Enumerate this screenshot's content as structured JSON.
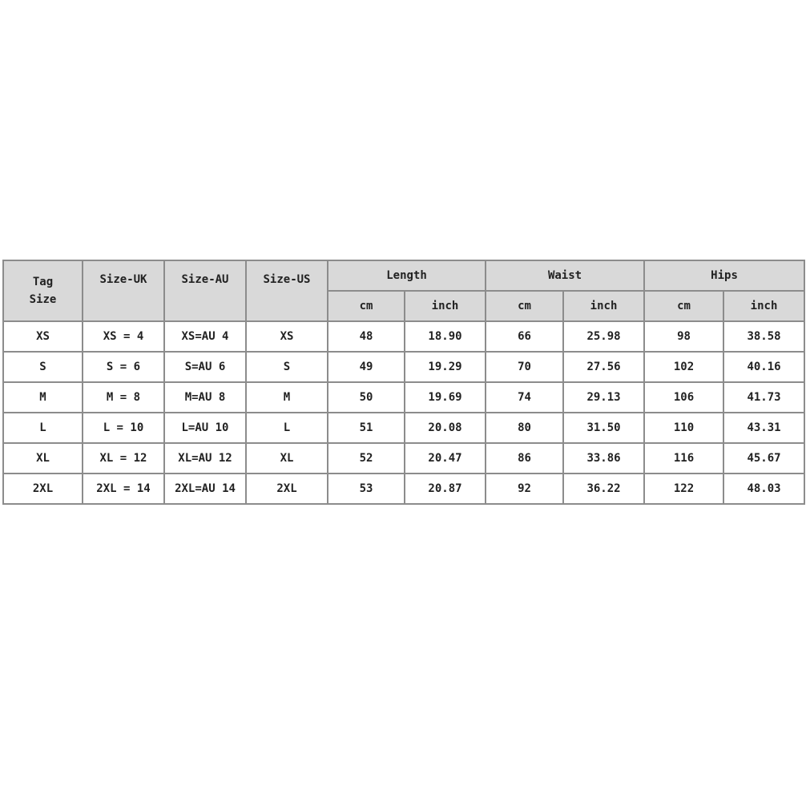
{
  "headers": {
    "tag_size_line1": "Tag",
    "tag_size_line2": "Size",
    "size_uk": "Size-UK",
    "size_au": "Size-AU",
    "size_us": "Size-US",
    "length": "Length",
    "waist": "Waist",
    "hips": "Hips",
    "cm": "cm",
    "inch": "inch"
  },
  "rows": [
    [
      "XS",
      "XS = 4",
      "XS=AU 4",
      "XS",
      "48",
      "18.90",
      "66",
      "25.98",
      "98",
      "38.58"
    ],
    [
      "S",
      "S = 6",
      "S=AU 6",
      "S",
      "49",
      "19.29",
      "70",
      "27.56",
      "102",
      "40.16"
    ],
    [
      "M",
      "M = 8",
      "M=AU 8",
      "M",
      "50",
      "19.69",
      "74",
      "29.13",
      "106",
      "41.73"
    ],
    [
      "L",
      "L = 10",
      "L=AU 10",
      "L",
      "51",
      "20.08",
      "80",
      "31.50",
      "110",
      "43.31"
    ],
    [
      "XL",
      "XL = 12",
      "XL=AU 12",
      "XL",
      "52",
      "20.47",
      "86",
      "33.86",
      "116",
      "45.67"
    ],
    [
      "2XL",
      "2XL = 14",
      "2XL=AU 14",
      "2XL",
      "53",
      "20.87",
      "92",
      "36.22",
      "122",
      "48.03"
    ]
  ]
}
